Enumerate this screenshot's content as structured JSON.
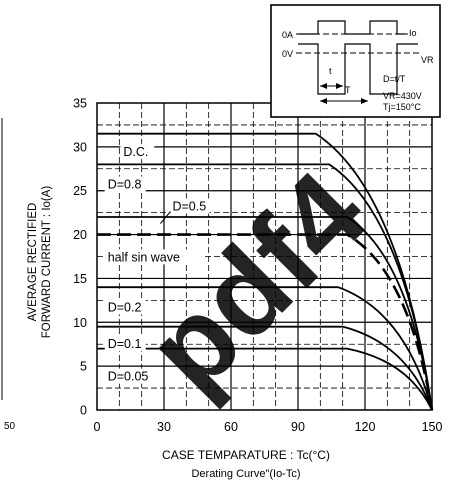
{
  "page": {
    "edge_fragments": {
      "left_label": "50"
    }
  },
  "chart_data": {
    "type": "line",
    "xlabel": "CASE TEMPARATURE : Tc(°C)",
    "ylabel_line1": "AVERAGE RECTIFIED",
    "ylabel_line2": "FORWARD CURRENT : Io(A)",
    "caption": "Derating Curve\"(Io-Tc)",
    "xlim": [
      0,
      150
    ],
    "ylim": [
      0,
      35
    ],
    "xticks": [
      0,
      30,
      60,
      90,
      120,
      150
    ],
    "yticks": [
      0,
      5,
      10,
      15,
      20,
      25,
      30,
      35
    ],
    "grid": true,
    "series": [
      {
        "name": "D.C.",
        "label": "D.C.",
        "x": [
          0,
          98,
          150
        ],
        "y": [
          31.5,
          31.5,
          0
        ],
        "curve": "concave"
      },
      {
        "name": "D=0.8",
        "label": "D=0.8",
        "x": [
          0,
          104,
          150
        ],
        "y": [
          28,
          28,
          0
        ],
        "curve": "concave"
      },
      {
        "name": "D=0.5",
        "label": "D=0.5",
        "x": [
          0,
          112,
          150
        ],
        "y": [
          22,
          22,
          0
        ],
        "curve": "concave"
      },
      {
        "name": "half sin wave",
        "label": "half sin wave",
        "x": [
          0,
          112,
          150
        ],
        "y": [
          20,
          20,
          0
        ],
        "curve": "concave",
        "dashed": true
      },
      {
        "name": "D=0.2",
        "label": "D=0.2",
        "x": [
          0,
          108,
          150
        ],
        "y": [
          14,
          14,
          0
        ],
        "curve": "concave"
      },
      {
        "name": "D=0.1",
        "label": "D=0.1",
        "x": [
          0,
          110,
          150
        ],
        "y": [
          9.5,
          9.5,
          0
        ],
        "curve": "concave"
      },
      {
        "name": "D=0.05",
        "label": "D=0.05",
        "x": [
          0,
          112,
          150
        ],
        "y": [
          7,
          7,
          0
        ],
        "curve": "concave"
      }
    ],
    "inset": {
      "label_0A": "0A",
      "label_0V": "0V",
      "label_Io": "Io",
      "label_VR": "VR",
      "label_t": "t",
      "label_T": "T",
      "formula_D": "D=t/T",
      "formula_VR": "VR=430V",
      "formula_Tj": "Tj=150°C"
    },
    "watermark": "pdf4"
  }
}
